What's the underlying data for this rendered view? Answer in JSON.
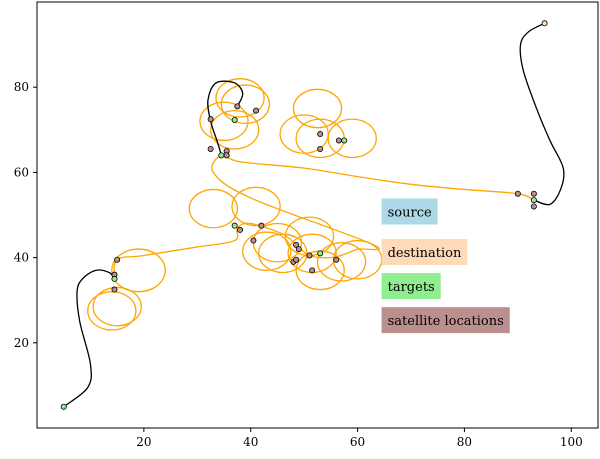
{
  "chart_data": {
    "type": "line",
    "xlim": [
      0,
      105
    ],
    "ylim": [
      0,
      100
    ],
    "x_ticks": [
      20,
      40,
      60,
      80,
      100
    ],
    "y_ticks": [
      20,
      40,
      60,
      80
    ],
    "grid": false,
    "legend": [
      {
        "label": "source",
        "color": "#add8e6"
      },
      {
        "label": "destination",
        "color": "#ffdab9"
      },
      {
        "label": "targets",
        "color": "#90ee90"
      },
      {
        "label": "satellite locations",
        "color": "#bc8f8f"
      }
    ],
    "colors": {
      "path": "#ffa500",
      "transit": "#000000"
    },
    "source_point": [
      5,
      5
    ],
    "destination_point": [
      95,
      95
    ],
    "targets": [
      [
        5,
        5
      ],
      [
        14.5,
        35
      ],
      [
        37,
        72.3
      ],
      [
        34.5,
        64
      ],
      [
        37,
        47.5
      ],
      [
        53,
        41
      ],
      [
        57.5,
        67.5
      ],
      [
        93,
        53.5
      ]
    ],
    "satellite_locations": [
      [
        14.5,
        36
      ],
      [
        15,
        39.5
      ],
      [
        14.5,
        32.5
      ],
      [
        37.5,
        75.5
      ],
      [
        41,
        74.5
      ],
      [
        32.5,
        72.5
      ],
      [
        32.5,
        65.5
      ],
      [
        35.5,
        65
      ],
      [
        35.5,
        64
      ],
      [
        38,
        46.5
      ],
      [
        40.5,
        44
      ],
      [
        42,
        47.5
      ],
      [
        48.5,
        43
      ],
      [
        49,
        42
      ],
      [
        48,
        39
      ],
      [
        48.5,
        39.5
      ],
      [
        51,
        40.5
      ],
      [
        51.5,
        37
      ],
      [
        56,
        39.5
      ],
      [
        53,
        69
      ],
      [
        53,
        65.5
      ],
      [
        56.5,
        67.5
      ],
      [
        90,
        55
      ],
      [
        93,
        55
      ],
      [
        93,
        52
      ]
    ],
    "transit_paths": [
      [
        [
          5,
          5
        ],
        [
          9.5,
          9.5
        ],
        [
          10,
          15
        ],
        [
          8,
          25
        ],
        [
          7.5,
          32
        ],
        [
          8.5,
          35
        ],
        [
          11,
          37
        ],
        [
          13.5,
          36.5
        ],
        [
          14.5,
          35
        ]
      ],
      [
        [
          37.5,
          75.5
        ],
        [
          38.5,
          78.5
        ],
        [
          37,
          81
        ],
        [
          33.5,
          81
        ],
        [
          32,
          77
        ],
        [
          32.5,
          72
        ],
        [
          33.8,
          67
        ],
        [
          34.5,
          64
        ]
      ],
      [
        [
          95,
          95
        ],
        [
          92,
          93
        ],
        [
          90.5,
          90
        ],
        [
          91,
          84
        ],
        [
          93.5,
          75
        ],
        [
          96,
          67.5
        ],
        [
          98.5,
          61
        ],
        [
          98,
          56
        ],
        [
          96,
          52.5
        ],
        [
          93,
          53.5
        ]
      ]
    ],
    "tour_path": [
      [
        14.5,
        35
      ],
      [
        15,
        39.5
      ],
      [
        20,
        40.5
      ],
      [
        30,
        42.5
      ],
      [
        37,
        44
      ],
      [
        37.5,
        47
      ],
      [
        40,
        48
      ],
      [
        46,
        45.5
      ],
      [
        48.5,
        43
      ],
      [
        51,
        40.5
      ],
      [
        55,
        40
      ],
      [
        58,
        41
      ],
      [
        60,
        42
      ],
      [
        63,
        43
      ],
      [
        40,
        54
      ],
      [
        33,
        60
      ],
      [
        34.5,
        64
      ],
      [
        38,
        62.5
      ],
      [
        50,
        61
      ],
      [
        60,
        59
      ],
      [
        70,
        57.2
      ],
      [
        80,
        56
      ],
      [
        90,
        55
      ],
      [
        93,
        53.5
      ]
    ],
    "loops": [
      {
        "center": [
          19,
          37
        ],
        "radius": 5
      },
      {
        "center": [
          14,
          27.5
        ],
        "radius": 4.5
      },
      {
        "center": [
          15,
          28.5
        ],
        "radius": 4.5
      },
      {
        "center": [
          38,
          77.5
        ],
        "radius": 4.5
      },
      {
        "center": [
          39,
          76
        ],
        "radius": 4.5
      },
      {
        "center": [
          35,
          72
        ],
        "radius": 4.5
      },
      {
        "center": [
          37,
          70
        ],
        "radius": 4.5
      },
      {
        "center": [
          33,
          51.5
        ],
        "radius": 4.5
      },
      {
        "center": [
          41,
          52
        ],
        "radius": 4.5
      },
      {
        "center": [
          43,
          41.5
        ],
        "radius": 4.5
      },
      {
        "center": [
          45,
          43.5
        ],
        "radius": 4.5
      },
      {
        "center": [
          46,
          41
        ],
        "radius": 4.5
      },
      {
        "center": [
          51,
          45
        ],
        "radius": 4.5
      },
      {
        "center": [
          51.5,
          41
        ],
        "radius": 4.5
      },
      {
        "center": [
          53,
          37
        ],
        "radius": 4.5
      },
      {
        "center": [
          57,
          39
        ],
        "radius": 4.5
      },
      {
        "center": [
          60,
          39.5
        ],
        "radius": 4.5
      },
      {
        "center": [
          50,
          69
        ],
        "radius": 4.5
      },
      {
        "center": [
          52.5,
          75
        ],
        "radius": 4.5
      },
      {
        "center": [
          53,
          68
        ],
        "radius": 4.5
      },
      {
        "center": [
          59,
          68
        ],
        "radius": 4.5
      }
    ]
  }
}
